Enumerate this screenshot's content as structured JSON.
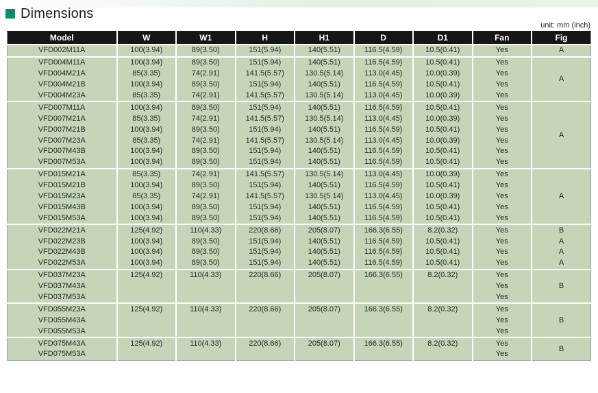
{
  "page": {
    "title": "Dimensions",
    "unit_label": "unit: mm (inch)",
    "accent_color": "#128a6d",
    "row_color": "#c5d6b8",
    "header_bg": "#161616"
  },
  "table": {
    "columns": [
      "Model",
      "W",
      "W1",
      "H",
      "H1",
      "D",
      "D1",
      "Fan",
      "Fig"
    ],
    "groups": [
      {
        "fig": "A",
        "rows": [
          [
            "VFD002M11A",
            "100(3.94)",
            "89(3.50)",
            "151(5.94)",
            "140(5.51)",
            "116.5(4.59)",
            "10.5(0.41)",
            "Yes"
          ]
        ]
      },
      {
        "fig": "A",
        "rows": [
          [
            "VFD004M11A",
            "100(3.94)",
            "89(3.50)",
            "151(5.94)",
            "140(5.51)",
            "116.5(4.59)",
            "10.5(0.41)",
            "Yes"
          ],
          [
            "VFD004M21A",
            "85(3.35)",
            "74(2.91)",
            "141.5(5.57)",
            "130.5(5.14)",
            "113.0(4.45)",
            "10.0(0.39)",
            "Yes"
          ],
          [
            "VFD004M21B",
            "100(3.94)",
            "89(3.50)",
            "151(5.94)",
            "140(5.51)",
            "116.5(4.59)",
            "10.5(0.41)",
            "Yes"
          ],
          [
            "VFD004M23A",
            "85(3.35)",
            "74(2.91)",
            "141.5(5.57)",
            "130.5(5.14)",
            "113.0(4.45)",
            "10.0(0.39)",
            "Yes"
          ]
        ]
      },
      {
        "fig": "A",
        "rows": [
          [
            "VFD007M11A",
            "100(3.94)",
            "89(3.50)",
            "151(5.94)",
            "140(5.51)",
            "116.5(4.59)",
            "10.5(0.41)",
            "Yes"
          ],
          [
            "VFD007M21A",
            "85(3.35)",
            "74(2.91)",
            "141.5(5.57)",
            "130.5(5.14)",
            "113.0(4.45)",
            "10.0(0.39)",
            "Yes"
          ],
          [
            "VFD007M21B",
            "100(3.94)",
            "89(3.50)",
            "151(5.94)",
            "140(5.51)",
            "116.5(4.59)",
            "10.5(0.41)",
            "Yes"
          ],
          [
            "VFD007M23A",
            "85(3.35)",
            "74(2.91)",
            "141.5(5.57)",
            "130.5(5.14)",
            "113.0(4.45)",
            "10.0(0.39)",
            "Yes"
          ],
          [
            "VFD007M43B",
            "100(3.94)",
            "89(3.50)",
            "151(5.94)",
            "140(5.51)",
            "116.5(4.59)",
            "10.5(0.41)",
            "Yes"
          ],
          [
            "VFD007M53A",
            "100(3.94)",
            "89(3.50)",
            "151(5.94)",
            "140(5.51)",
            "116.5(4.59)",
            "10.5(0.41)",
            "Yes"
          ]
        ]
      },
      {
        "fig": "A",
        "rows": [
          [
            "VFD015M21A",
            "85(3.35)",
            "74(2.91)",
            "141.5(5.57)",
            "130.5(5.14)",
            "113.0(4.45)",
            "10.0(0.39)",
            "Yes"
          ],
          [
            "VFD015M21B",
            "100(3.94)",
            "89(3.50)",
            "151(5.94)",
            "140(5.51)",
            "116.5(4.59)",
            "10.5(0.41)",
            "Yes"
          ],
          [
            "VFD015M23A",
            "85(3.35)",
            "74(2.91)",
            "141.5(5.57)",
            "130.5(5.14)",
            "113.0(4.45)",
            "10.0(0.39)",
            "Yes"
          ],
          [
            "VFD015M43B",
            "100(3.94)",
            "89(3.50)",
            "151(5.94)",
            "140(5.51)",
            "116.5(4.59)",
            "10.5(0.41)",
            "Yes"
          ],
          [
            "VFD015M53A",
            "100(3.94)",
            "89(3.50)",
            "151(5.94)",
            "140(5.51)",
            "116.5(4.59)",
            "10.5(0.41)",
            "Yes"
          ]
        ]
      },
      {
        "rows": [
          [
            "VFD022M21A",
            "125(4.92)",
            "110(4.33)",
            "220(8.66)",
            "205(8.07)",
            "166.3(6.55)",
            "8.2(0.32)",
            "Yes",
            "B"
          ],
          [
            "VFD022M23B",
            "100(3.94)",
            "89(3.50)",
            "151(5.94)",
            "140(5.51)",
            "116.5(4.59)",
            "10.5(0.41)",
            "Yes",
            "A"
          ],
          [
            "VFD022M43B",
            "100(3.94)",
            "89(3.50)",
            "151(5.94)",
            "140(5.51)",
            "116.5(4.59)",
            "10.5(0.41)",
            "Yes",
            "A"
          ],
          [
            "VFD022M53A",
            "100(3.94)",
            "89(3.50)",
            "151(5.94)",
            "140(5.51)",
            "116.5(4.59)",
            "10.5(0.41)",
            "Yes",
            "A"
          ]
        ]
      },
      {
        "fig": "B",
        "rows": [
          [
            "VFD037M23A",
            "125(4.92)",
            "110(4.33)",
            "220(8.66)",
            "205(8.07)",
            "166.3(6.55)",
            "8.2(0.32)",
            "Yes"
          ],
          [
            "VFD037M43A",
            "",
            "",
            "",
            "",
            "",
            "",
            "Yes"
          ],
          [
            "VFD037M53A",
            "",
            "",
            "",
            "",
            "",
            "",
            "Yes"
          ]
        ]
      },
      {
        "fig": "B",
        "rows": [
          [
            "VFD055M23A",
            "125(4.92)",
            "110(4.33)",
            "220(8.66)",
            "205(8.07)",
            "166.3(6.55)",
            "8.2(0.32)",
            "Yes"
          ],
          [
            "VFD055M43A",
            "",
            "",
            "",
            "",
            "",
            "",
            "Yes"
          ],
          [
            "VFD055M53A",
            "",
            "",
            "",
            "",
            "",
            "",
            "Yes"
          ]
        ]
      },
      {
        "fig": "B",
        "rows": [
          [
            "VFD075M43A",
            "125(4.92)",
            "110(4.33)",
            "220(8.66)",
            "205(8.07)",
            "166.3(6.55)",
            "8.2(0.32)",
            "Yes"
          ],
          [
            "VFD075M53A",
            "",
            "",
            "",
            "",
            "",
            "",
            "Yes"
          ]
        ]
      }
    ]
  }
}
